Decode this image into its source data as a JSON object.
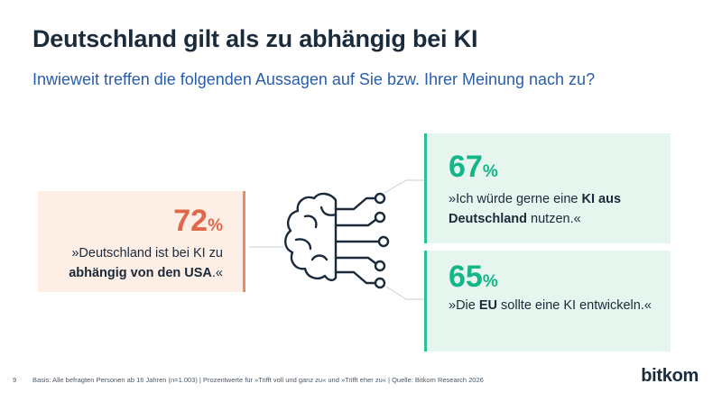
{
  "slide": {
    "title": "Deutschland gilt als zu abhängig bei KI",
    "subtitle": "Inwieweit treffen die folgenden Aussagen auf Sie bzw. Ihrer Meinung nach zu?"
  },
  "cards": {
    "left": {
      "value": "72",
      "unit": "%",
      "line1": "»Deutschland ist bei KI zu",
      "line2_bold": "abhängig von den USA",
      "line2_rest": ".«",
      "color": "#e0684a"
    },
    "top_right": {
      "value": "67",
      "unit": "%",
      "line1_plain": "»Ich würde gerne eine ",
      "line1_bold": "KI aus",
      "line2_bold": "Deutschland",
      "line2_rest": " nutzen.«",
      "color": "#14b589"
    },
    "bottom_right": {
      "value": "65",
      "unit": "%",
      "pre": "»Die ",
      "bold": "EU",
      "post": " sollte eine KI entwickeln.«",
      "color": "#14b589"
    }
  },
  "icon": {
    "name": "brain-circuit-icon"
  },
  "footer": {
    "page_number": "9",
    "note": "Basis: Alle befragten Personen ab 16 Jahren (n=1.003) | Prozentwerte für »Trifft voll und ganz zu« und »Trifft eher zu« | Quelle: Bitkom Research 2026"
  },
  "logo": {
    "text": "bitkom"
  }
}
